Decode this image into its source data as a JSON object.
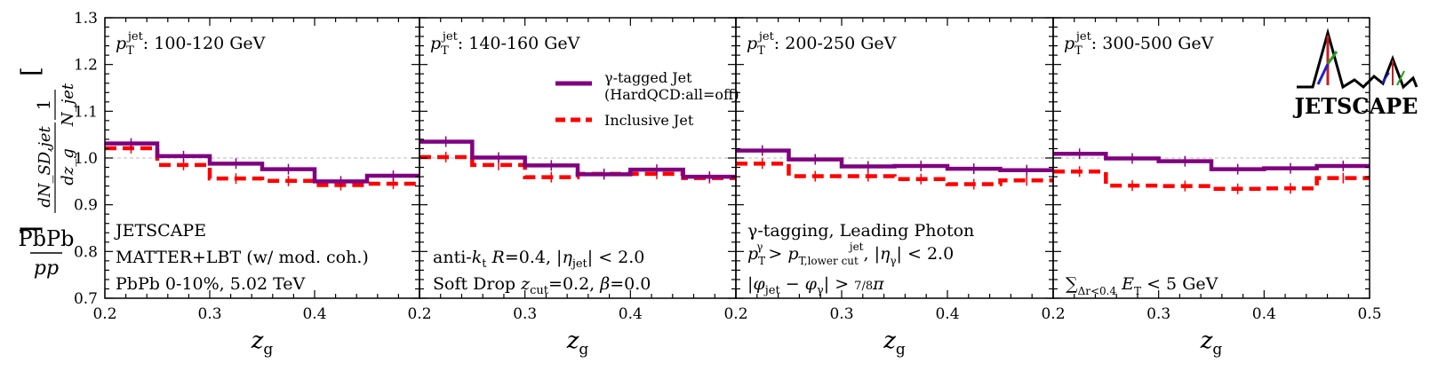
{
  "figure": {
    "ylabel_lead": "PbPb",
    "ylabel_lead_den": "pp",
    "ylabel_bracket_num": "1",
    "ylabel_bracket_den": "N_jet",
    "ylabel_deriv_num": "dN_SD,jet",
    "ylabel_deriv_den": "dz_g",
    "xlabel": "z_g",
    "logo_text": "JETSCAPE"
  },
  "colors": {
    "gamma_tagged": "#800080",
    "inclusive": "#ff0000",
    "reference_line": "#c8c8c8",
    "axis": "#000000"
  },
  "legend": {
    "gamma_label": "γ-tagged Jet",
    "gamma_sub": "(HardQCD:all=off)",
    "inclusive_label": "Inclusive Jet"
  },
  "chart_data": [
    {
      "type": "line",
      "step": true,
      "title": "p_T^jet: 100-120 GeV",
      "xlabel": "z_g",
      "ylabel": "PbPb/pp [1/N_jet dN_SD,jet/dz_g]",
      "xlim": [
        0.2,
        0.5
      ],
      "ylim": [
        0.7,
        1.3
      ],
      "x_edges": [
        0.2,
        0.25,
        0.3,
        0.35,
        0.4,
        0.45,
        0.5
      ],
      "xticks": [
        "0.2",
        "0.3",
        "0.4"
      ],
      "yticks": [
        "0.7",
        "0.8",
        "0.9",
        "1.0",
        "1.1",
        "1.2",
        "1.3"
      ],
      "reference_y": 1.0,
      "series": [
        {
          "name": "γ-tagged Jet (HardQCD:all=off)",
          "values": [
            1.031,
            1.004,
            0.988,
            0.976,
            0.95,
            0.962
          ]
        },
        {
          "name": "Inclusive Jet",
          "values": [
            1.021,
            0.985,
            0.956,
            0.951,
            0.942,
            0.945
          ]
        }
      ],
      "annotations": [
        "JETSCAPE",
        "MATTER+LBT (w/ mod. coh.)",
        "PbPb 0-10%, 5.02 TeV"
      ]
    },
    {
      "type": "line",
      "step": true,
      "title": "p_T^jet: 140-160 GeV",
      "xlabel": "z_g",
      "xlim": [
        0.2,
        0.5
      ],
      "ylim": [
        0.7,
        1.3
      ],
      "x_edges": [
        0.2,
        0.25,
        0.3,
        0.35,
        0.4,
        0.45,
        0.5
      ],
      "xticks": [
        "0.2",
        "0.3",
        "0.4"
      ],
      "reference_y": 1.0,
      "series": [
        {
          "name": "γ-tagged Jet (HardQCD:all=off)",
          "values": [
            1.035,
            1.001,
            0.984,
            0.965,
            0.975,
            0.96
          ]
        },
        {
          "name": "Inclusive Jet",
          "values": [
            1.002,
            0.985,
            0.959,
            0.966,
            0.966,
            0.957
          ]
        }
      ],
      "annotations": [
        "anti-k_t R=0.4, |η_jet| < 2.0",
        "Soft Drop z_cut=0.2, β=0.0"
      ]
    },
    {
      "type": "line",
      "step": true,
      "title": "p_T^jet: 200-250 GeV",
      "xlabel": "z_g",
      "xlim": [
        0.2,
        0.5
      ],
      "ylim": [
        0.7,
        1.3
      ],
      "x_edges": [
        0.2,
        0.25,
        0.3,
        0.35,
        0.4,
        0.45,
        0.5
      ],
      "xticks": [
        "0.2",
        "0.3",
        "0.4"
      ],
      "reference_y": 1.0,
      "series": [
        {
          "name": "γ-tagged Jet (HardQCD:all=off)",
          "values": [
            1.016,
            0.997,
            0.982,
            0.983,
            0.977,
            0.974
          ]
        },
        {
          "name": "Inclusive Jet",
          "values": [
            0.988,
            0.961,
            0.961,
            0.955,
            0.944,
            0.952
          ]
        }
      ],
      "annotations": [
        "γ-tagging, Leading Photon",
        "p_T^γ > p_T,lower cut^jet, |η_γ| < 2.0",
        "|φ_jet − φ_γ| > 7/8 π"
      ]
    },
    {
      "type": "line",
      "step": true,
      "title": "p_T^jet: 300-500 GeV",
      "xlabel": "z_g",
      "xlim": [
        0.2,
        0.5
      ],
      "ylim": [
        0.7,
        1.3
      ],
      "x_edges": [
        0.2,
        0.25,
        0.3,
        0.35,
        0.4,
        0.45,
        0.5
      ],
      "xticks": [
        "0.2",
        "0.3",
        "0.4",
        "0.5"
      ],
      "reference_y": 1.0,
      "series": [
        {
          "name": "γ-tagged Jet (HardQCD:all=off)",
          "values": [
            1.009,
            0.999,
            0.993,
            0.976,
            0.978,
            0.983
          ]
        },
        {
          "name": "Inclusive Jet",
          "values": [
            0.971,
            0.941,
            0.94,
            0.934,
            0.935,
            0.957
          ]
        }
      ],
      "annotations": [
        "∑_{Δr<0.4} E_T < 5 GeV"
      ]
    }
  ]
}
